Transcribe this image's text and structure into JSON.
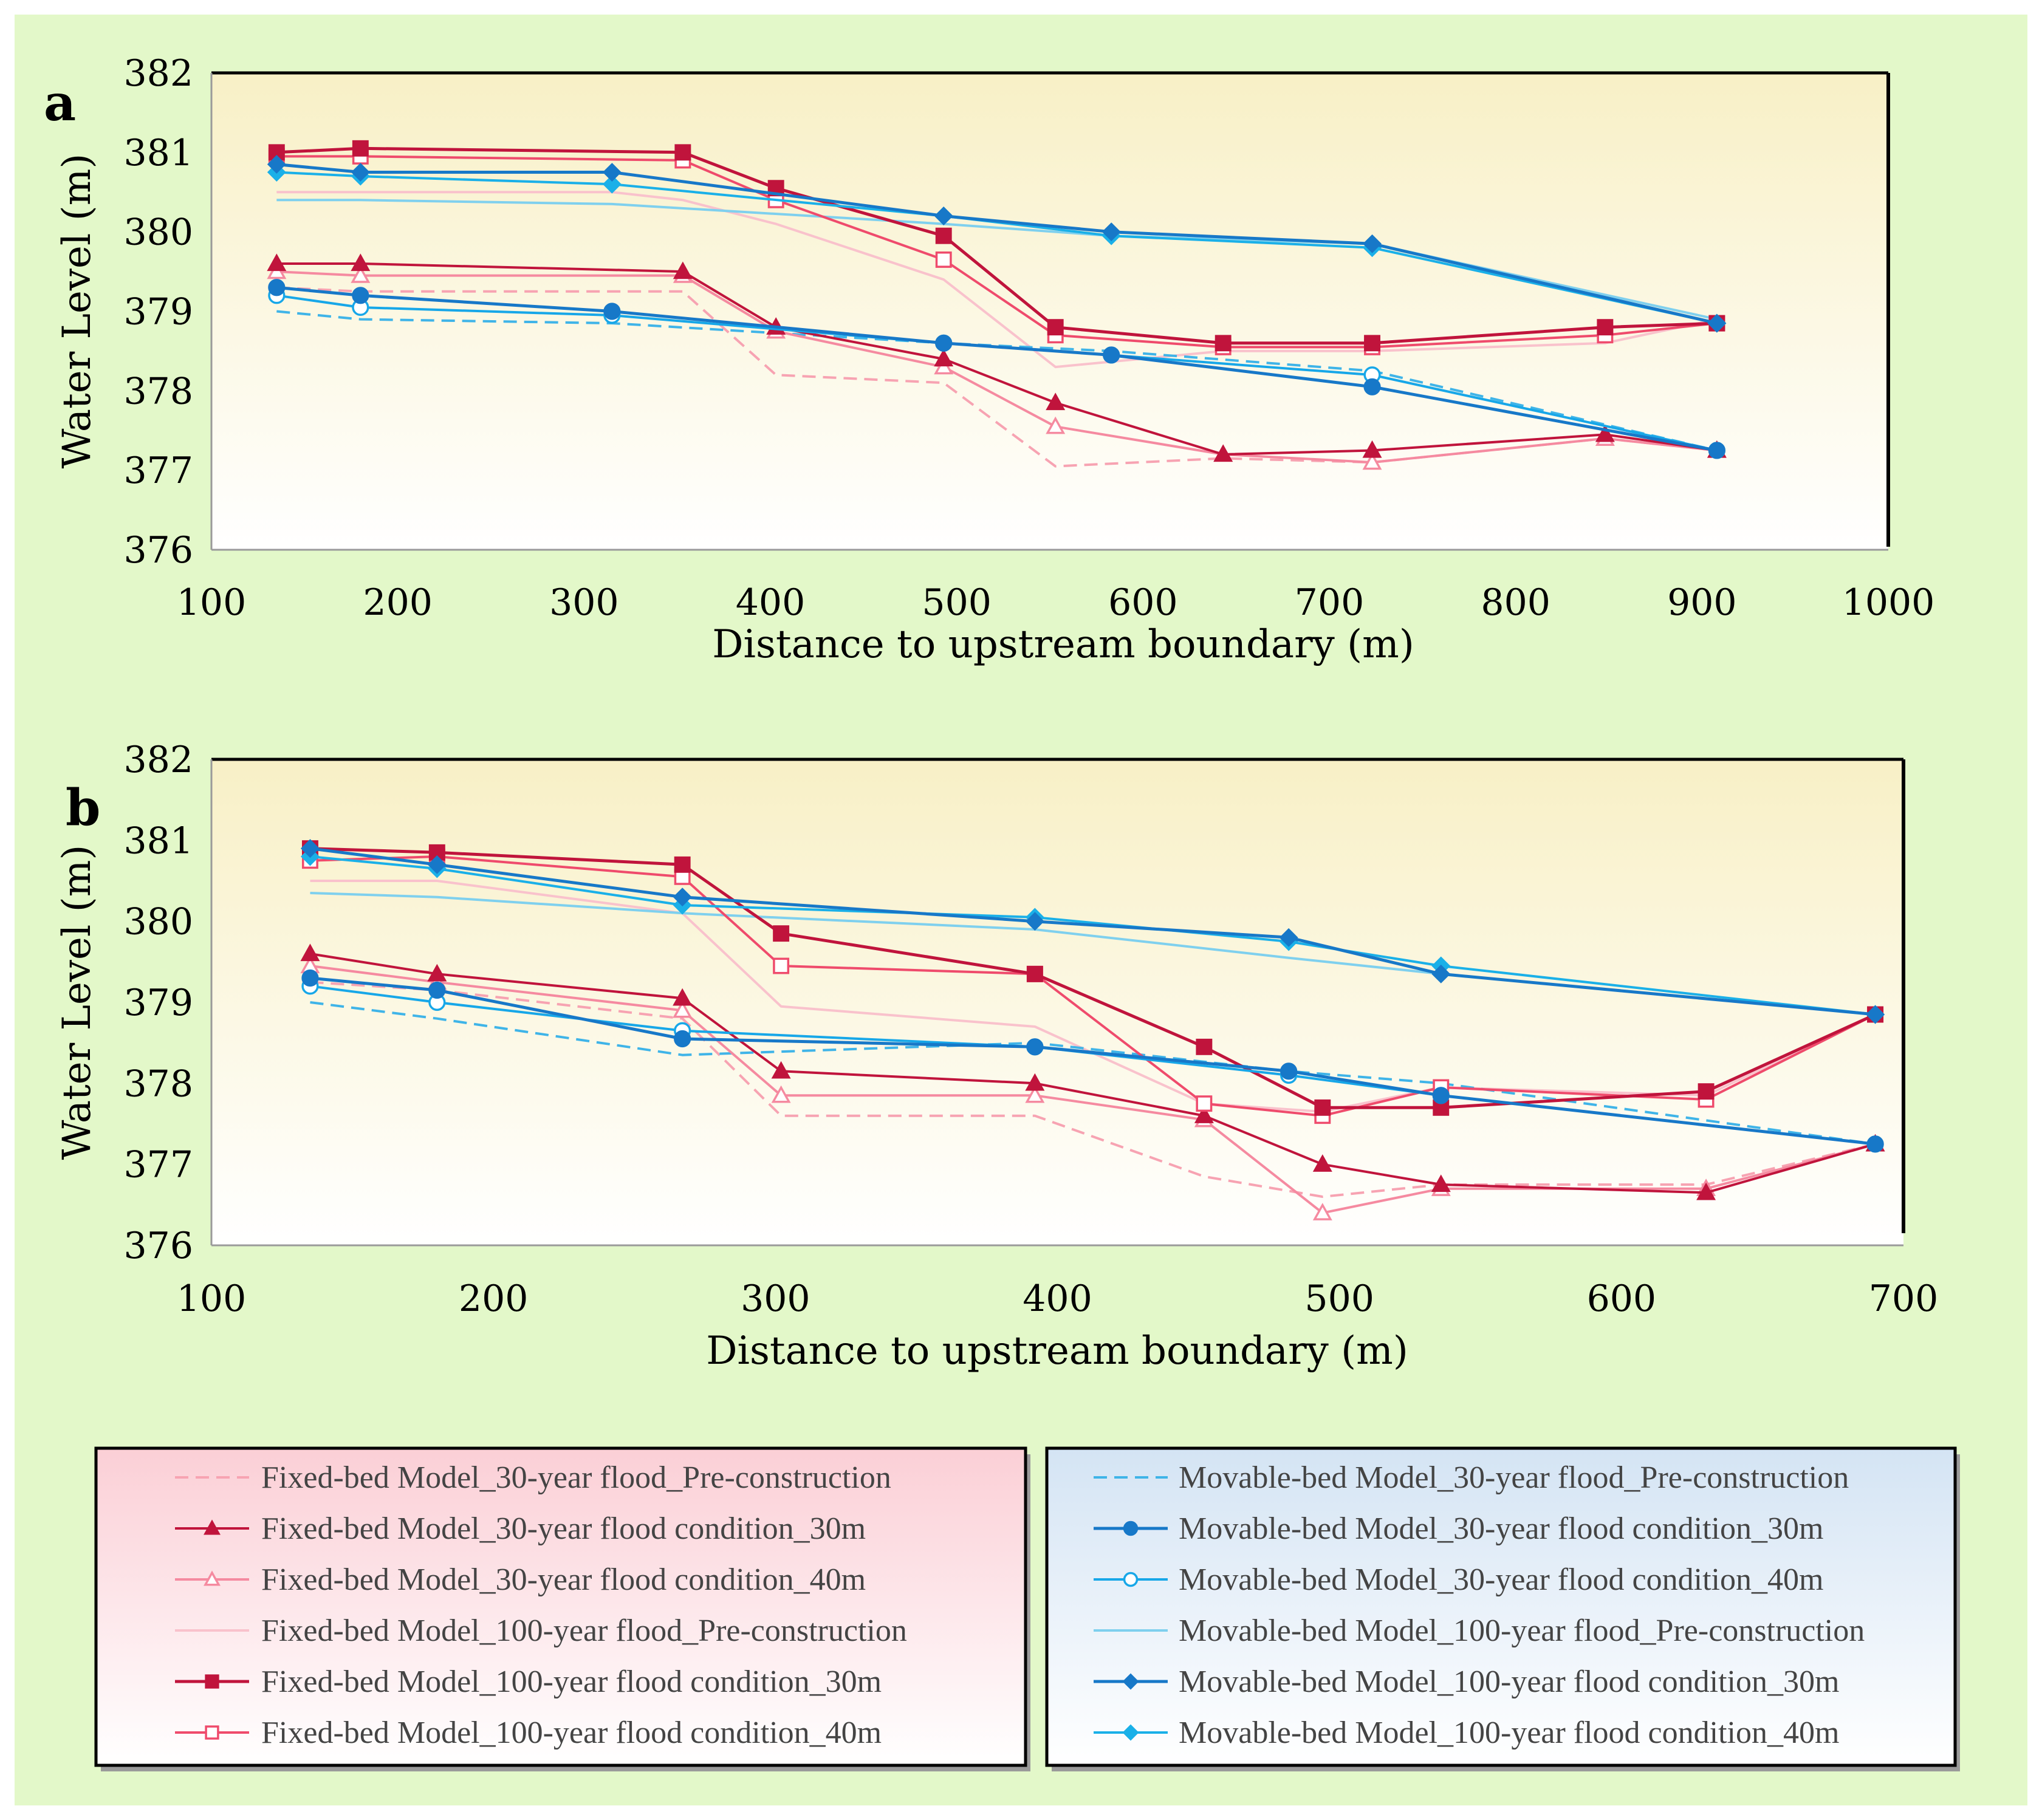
{
  "colors": {
    "fixed_pre": "#f7a3b2",
    "fixed_30": "#c0143c",
    "fixed_40": "#f58aa0",
    "fixed_100pre": "#f9c2cc",
    "fixed_100_30": "#c0143c",
    "fixed_100_40": "#ef4b6c",
    "mov_pre": "#3fb4e8",
    "mov_30": "#1778c8",
    "mov_40": "#17a7e8",
    "mov_100pre": "#7fd0ee",
    "mov_100_30": "#1778c8",
    "mov_100_40": "#1ab0e8"
  },
  "legend": {
    "fixed": [
      {
        "label": "Fixed-bed Model_30-year flood_Pre-construction",
        "series": "fpre30"
      },
      {
        "label": "Fixed-bed Model_30-year flood condition_30m",
        "series": "f30_30"
      },
      {
        "label": "Fixed-bed Model_30-year flood condition_40m",
        "series": "f30_40"
      },
      {
        "label": "Fixed-bed Model_100-year flood_Pre-construction",
        "series": "fpre100"
      },
      {
        "label": "Fixed-bed Model_100-year flood condition_30m",
        "series": "f100_30"
      },
      {
        "label": "Fixed-bed Model_100-year flood condition_40m",
        "series": "f100_40"
      }
    ],
    "movable": [
      {
        "label": "Movable-bed Model_30-year flood_Pre-construction",
        "series": "mpre30"
      },
      {
        "label": "Movable-bed Model_30-year flood condition_30m",
        "series": "m30_30"
      },
      {
        "label": "Movable-bed Model_30-year flood condition_40m",
        "series": "m30_40"
      },
      {
        "label": "Movable-bed Model_100-year flood_Pre-construction",
        "series": "mpre100"
      },
      {
        "label": "Movable-bed Model_100-year flood condition_30m",
        "series": "m100_30"
      },
      {
        "label": "Movable-bed Model_100-year flood condition_40m",
        "series": "m100_40"
      }
    ]
  },
  "styles": {
    "fpre30": {
      "color": "#f7a3b2",
      "dash": true,
      "marker": "none",
      "width": 4
    },
    "f30_30": {
      "color": "#c0143c",
      "dash": false,
      "marker": "triangle",
      "fill": true,
      "width": 4
    },
    "f30_40": {
      "color": "#f58aa0",
      "dash": false,
      "marker": "triangle",
      "fill": false,
      "width": 4
    },
    "fpre100": {
      "color": "#f9c2cc",
      "dash": false,
      "marker": "none",
      "width": 4
    },
    "f100_30": {
      "color": "#c0143c",
      "dash": false,
      "marker": "square",
      "fill": true,
      "width": 5
    },
    "f100_40": {
      "color": "#ef4b6c",
      "dash": false,
      "marker": "square",
      "fill": false,
      "width": 4
    },
    "mpre30": {
      "color": "#3fb4e8",
      "dash": true,
      "marker": "none",
      "width": 4
    },
    "m30_30": {
      "color": "#1778c8",
      "dash": false,
      "marker": "circle",
      "fill": true,
      "width": 5
    },
    "m30_40": {
      "color": "#17a7e8",
      "dash": false,
      "marker": "circle",
      "fill": false,
      "width": 4
    },
    "mpre100": {
      "color": "#7fd0ee",
      "dash": false,
      "marker": "none",
      "width": 4
    },
    "m100_30": {
      "color": "#1778c8",
      "dash": false,
      "marker": "diamond",
      "fill": true,
      "width": 5
    },
    "m100_40": {
      "color": "#1ab0e8",
      "dash": false,
      "marker": "diamond",
      "fill": true,
      "width": 4
    }
  },
  "chart_data": [
    {
      "panel": "a",
      "type": "line",
      "xlabel": "Distance to upstream boundary (m)",
      "ylabel": "Water Level (m)",
      "xlim": [
        100,
        1000
      ],
      "ylim": [
        376,
        382
      ],
      "xticks": [
        100,
        200,
        300,
        400,
        500,
        600,
        700,
        800,
        900,
        1000
      ],
      "yticks": [
        376,
        377,
        378,
        379,
        380,
        381,
        382
      ],
      "series": [
        {
          "id": "fpre100",
          "x": [
            135,
            180,
            315,
            353,
            403,
            493,
            553,
            643,
            723,
            848,
            908
          ],
          "y": [
            380.5,
            380.5,
            380.5,
            380.4,
            380.1,
            379.4,
            378.3,
            378.5,
            378.5,
            378.6,
            378.9
          ]
        },
        {
          "id": "mpre100",
          "x": [
            135,
            180,
            315,
            493,
            583,
            723,
            908
          ],
          "y": [
            380.4,
            380.4,
            380.35,
            380.1,
            379.95,
            379.85,
            378.9
          ]
        },
        {
          "id": "fpre30",
          "x": [
            135,
            180,
            315,
            353,
            403,
            493,
            553,
            643,
            723,
            848,
            908
          ],
          "y": [
            379.3,
            379.25,
            379.25,
            379.25,
            378.2,
            378.1,
            377.05,
            377.15,
            377.1,
            377.4,
            377.25
          ]
        },
        {
          "id": "mpre30",
          "x": [
            135,
            180,
            315,
            493,
            583,
            723,
            908
          ],
          "y": [
            379.0,
            378.9,
            378.85,
            378.6,
            378.5,
            378.25,
            377.25
          ]
        },
        {
          "id": "f30_40",
          "x": [
            135,
            180,
            353,
            403,
            493,
            553,
            643,
            723,
            848,
            908
          ],
          "y": [
            379.5,
            379.45,
            379.45,
            378.75,
            378.3,
            377.55,
            377.2,
            377.1,
            377.4,
            377.25
          ]
        },
        {
          "id": "f30_30",
          "x": [
            135,
            180,
            353,
            403,
            493,
            553,
            643,
            723,
            848,
            908
          ],
          "y": [
            379.6,
            379.6,
            379.5,
            378.8,
            378.4,
            377.85,
            377.2,
            377.25,
            377.45,
            377.25
          ]
        },
        {
          "id": "f100_40",
          "x": [
            135,
            180,
            353,
            403,
            493,
            553,
            643,
            723,
            848,
            908
          ],
          "y": [
            380.95,
            380.95,
            380.9,
            380.4,
            379.65,
            378.7,
            378.55,
            378.55,
            378.7,
            378.85
          ]
        },
        {
          "id": "f100_30",
          "x": [
            135,
            180,
            353,
            403,
            493,
            553,
            643,
            723,
            848,
            908
          ],
          "y": [
            381.0,
            381.05,
            381.0,
            380.55,
            379.95,
            378.8,
            378.6,
            378.6,
            378.8,
            378.85
          ]
        },
        {
          "id": "m30_40",
          "x": [
            135,
            180,
            315,
            493,
            583,
            723,
            908
          ],
          "y": [
            379.2,
            379.05,
            378.95,
            378.6,
            378.45,
            378.2,
            377.25
          ]
        },
        {
          "id": "m30_30",
          "x": [
            135,
            180,
            315,
            493,
            583,
            723,
            908
          ],
          "y": [
            379.3,
            379.2,
            379.0,
            378.6,
            378.45,
            378.05,
            377.25
          ]
        },
        {
          "id": "m100_40",
          "x": [
            135,
            180,
            315,
            493,
            583,
            723,
            908
          ],
          "y": [
            380.75,
            380.7,
            380.6,
            380.2,
            379.95,
            379.8,
            378.85
          ]
        },
        {
          "id": "m100_30",
          "x": [
            135,
            180,
            315,
            493,
            583,
            723,
            908
          ],
          "y": [
            380.85,
            380.75,
            380.75,
            380.2,
            380.0,
            379.85,
            378.85
          ]
        }
      ]
    },
    {
      "panel": "b",
      "type": "line",
      "xlabel": "Distance to upstream boundary (m)",
      "ylabel": "Water Level (m)",
      "xlim": [
        100,
        700
      ],
      "ylim": [
        376,
        382
      ],
      "xticks": [
        100,
        200,
        300,
        400,
        500,
        600,
        700
      ],
      "yticks": [
        376,
        377,
        378,
        379,
        380,
        381,
        382
      ],
      "series": [
        {
          "id": "fpre100",
          "x": [
            135,
            180,
            267,
            302,
            392,
            452,
            494,
            536,
            630,
            690
          ],
          "y": [
            380.5,
            380.5,
            380.1,
            378.95,
            378.7,
            377.75,
            377.65,
            377.95,
            377.85,
            378.85
          ]
        },
        {
          "id": "mpre100",
          "x": [
            135,
            180,
            267,
            392,
            482,
            536,
            690
          ],
          "y": [
            380.35,
            380.3,
            380.1,
            379.9,
            379.55,
            379.35,
            378.85
          ]
        },
        {
          "id": "fpre30",
          "x": [
            135,
            180,
            267,
            302,
            392,
            452,
            494,
            536,
            630,
            690
          ],
          "y": [
            379.25,
            379.15,
            378.8,
            377.6,
            377.6,
            376.85,
            376.6,
            376.75,
            376.75,
            377.25
          ]
        },
        {
          "id": "mpre30",
          "x": [
            135,
            180,
            267,
            392,
            482,
            536,
            690
          ],
          "y": [
            379.0,
            378.8,
            378.35,
            378.5,
            378.15,
            378.0,
            377.25
          ]
        },
        {
          "id": "f30_40",
          "x": [
            135,
            180,
            267,
            302,
            392,
            452,
            494,
            536,
            630,
            690
          ],
          "y": [
            379.45,
            379.25,
            378.9,
            377.85,
            377.85,
            377.55,
            376.4,
            376.7,
            376.7,
            377.25
          ]
        },
        {
          "id": "f30_30",
          "x": [
            135,
            180,
            267,
            302,
            392,
            452,
            494,
            536,
            630,
            690
          ],
          "y": [
            379.6,
            379.35,
            379.05,
            378.15,
            378.0,
            377.6,
            377.0,
            376.75,
            376.65,
            377.25
          ]
        },
        {
          "id": "f100_40",
          "x": [
            135,
            180,
            267,
            302,
            392,
            452,
            494,
            536,
            630,
            690
          ],
          "y": [
            380.75,
            380.8,
            380.55,
            379.45,
            379.35,
            377.75,
            377.6,
            377.95,
            377.8,
            378.85
          ]
        },
        {
          "id": "f100_30",
          "x": [
            135,
            180,
            267,
            302,
            392,
            452,
            494,
            536,
            630,
            690
          ],
          "y": [
            380.9,
            380.85,
            380.7,
            379.85,
            379.35,
            378.45,
            377.7,
            377.7,
            377.9,
            378.85
          ]
        },
        {
          "id": "m30_40",
          "x": [
            135,
            180,
            267,
            392,
            482,
            536,
            690
          ],
          "y": [
            379.2,
            379.0,
            378.65,
            378.45,
            378.1,
            377.85,
            377.25
          ]
        },
        {
          "id": "m30_30",
          "x": [
            135,
            180,
            267,
            392,
            482,
            536,
            690
          ],
          "y": [
            379.3,
            379.15,
            378.55,
            378.45,
            378.15,
            377.85,
            377.25
          ]
        },
        {
          "id": "m100_40",
          "x": [
            135,
            180,
            267,
            392,
            482,
            536,
            690
          ],
          "y": [
            380.8,
            380.65,
            380.2,
            380.05,
            379.75,
            379.45,
            378.85
          ]
        },
        {
          "id": "m100_30",
          "x": [
            135,
            180,
            267,
            392,
            482,
            536,
            690
          ],
          "y": [
            380.9,
            380.7,
            380.3,
            380.0,
            379.8,
            379.35,
            378.85
          ]
        }
      ]
    }
  ]
}
